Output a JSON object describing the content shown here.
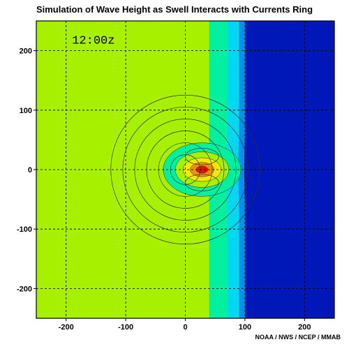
{
  "chart_data": {
    "type": "heatmap",
    "title": "Simulation of Wave Height as Swell Interacts with Currents Ring",
    "time_label": "12:00z",
    "credit": "NOAA / NWS / NCEP / MMAB",
    "xlabel": "",
    "ylabel": "",
    "xlim": [
      -250,
      250
    ],
    "ylim": [
      -250,
      250
    ],
    "xticks": [
      -200,
      -100,
      0,
      100,
      200
    ],
    "yticks": [
      200,
      100,
      0,
      -100,
      -200
    ],
    "grid": true,
    "grid_style": "dashed",
    "colors": {
      "background": "#a6f000",
      "band_cyan_green": "#00f0a0",
      "band_cyan": "#00d8f0",
      "band_blue": "#0090f0",
      "deep_blue": "#0018b8",
      "peak_yellow": "#f0e800",
      "peak_orange": "#f09000",
      "peak_red": "#e81000"
    },
    "region_bands": [
      {
        "x_from": 40,
        "x_to": 70,
        "color": "#00f0a0"
      },
      {
        "x_from": 70,
        "x_to": 90,
        "color": "#00d8f0"
      },
      {
        "x_from": 90,
        "x_to": 100,
        "color": "#0090f0"
      },
      {
        "x_from": 100,
        "x_to": 250,
        "color": "#0018b8"
      }
    ],
    "ring": {
      "center": [
        0,
        0
      ],
      "current_contour_radii": [
        25,
        45,
        65,
        85,
        105,
        125
      ]
    },
    "wave_height_peak": {
      "center": [
        28,
        0
      ],
      "levels": [
        {
          "rx": 65,
          "ry": 45,
          "color": "#00f0a0"
        },
        {
          "rx": 45,
          "ry": 30,
          "color": "#a6f000"
        },
        {
          "rx": 32,
          "ry": 20,
          "color": "#f0e800"
        },
        {
          "rx": 20,
          "ry": 12,
          "color": "#f09000"
        },
        {
          "rx": 10,
          "ry": 6,
          "color": "#e81000"
        }
      ]
    }
  }
}
